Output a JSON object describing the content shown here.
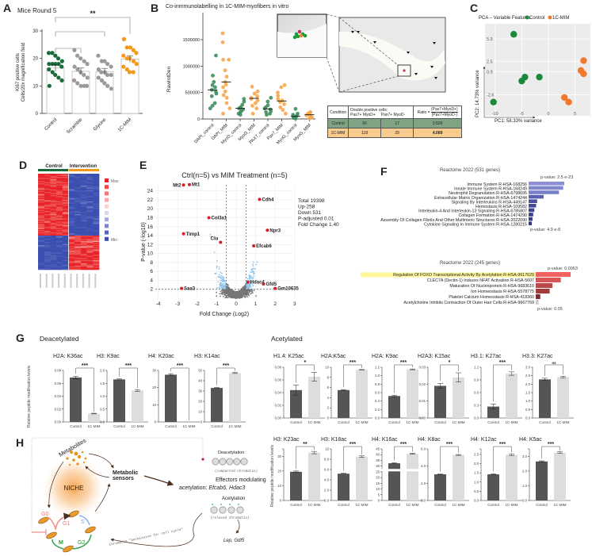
{
  "panels": {
    "A": "A",
    "B": "B",
    "C": "C",
    "D": "D",
    "E": "E",
    "F": "F",
    "G": "G",
    "H": "H"
  },
  "colors": {
    "control_green": "#1a6b3a",
    "mim_orange": "#f39a1e",
    "gray": "#9a9a9a",
    "heat_red": "#e8232a",
    "heat_blue": "#3a4fb0",
    "bar_dark": "#555555",
    "bar_light": "#dddddd",
    "highlight": "#fff59a"
  },
  "chart_data": [
    {
      "id": "A",
      "type": "bar",
      "title": "Mice Round 5",
      "ylabel": "Ki67 positive cells\nCells/20x magnification field",
      "ylabel_lines": [
        "Ki67 positive cells",
        "Cells/20x magnification field"
      ],
      "ylim": [
        0,
        30
      ],
      "yticks": [
        0,
        10,
        20,
        30
      ],
      "categories": [
        "Control",
        "Scramble",
        "Glycine",
        "1C-MIM"
      ],
      "points": [
        [
          22,
          22,
          21,
          20,
          19,
          18,
          18,
          18,
          18,
          17,
          16,
          15,
          14,
          13,
          12,
          10
        ],
        [
          23,
          21,
          20,
          19,
          18,
          17,
          16,
          15,
          14,
          13,
          12,
          11,
          10,
          10,
          10
        ],
        [
          21,
          19,
          19,
          18,
          17,
          16,
          15,
          15,
          14,
          14,
          13,
          12,
          11,
          10,
          9
        ],
        [
          27,
          24,
          24,
          23,
          22,
          21,
          20,
          20,
          19,
          18,
          17,
          16,
          15,
          15
        ]
      ],
      "values": [
        16.5,
        15.3,
        15.2,
        19.8
      ],
      "significance": [
        {
          "between": [
            "Control",
            "1C-MIM"
          ],
          "label": "**"
        },
        {
          "between": [
            "Control",
            "Glycine"
          ],
          "label": ""
        },
        {
          "between": [
            "Control",
            "Scramble"
          ],
          "label": ""
        }
      ]
    },
    {
      "id": "B",
      "type": "scatter",
      "title": "Co-inmmunolabelling in 1C-MIM-myofibers in vitro",
      "ylabel": "RawIntDen",
      "ylim": [
        0,
        1800000
      ],
      "yticks": [
        0,
        500000,
        1000000,
        1500000
      ],
      "categories": [
        "DAPI_control",
        "DAPI_MIM",
        "MyoD_control",
        "MyoD_MIM",
        "PAX7_control",
        "Pax7_MIM",
        "MyoG_control",
        "MyoG_MIM"
      ],
      "values": [
        550000,
        700000,
        200000,
        390000,
        190000,
        340000,
        50000,
        80000
      ],
      "points": [
        [
          1200000,
          820000,
          700000,
          640000,
          600000,
          550000,
          520000,
          480000,
          430000,
          300000,
          250000,
          200000
        ],
        [
          1620000,
          1450000,
          1120000,
          1120000,
          920000,
          800000,
          700000,
          650000,
          600000,
          520000,
          450000,
          400000,
          300000,
          200000,
          100000
        ],
        [
          380000,
          330000,
          270000,
          220000,
          200000,
          180000,
          150000,
          120000,
          100000,
          80000
        ],
        [
          610000,
          520000,
          480000,
          430000,
          400000,
          380000,
          350000,
          300000,
          250000,
          200000,
          100000
        ],
        [
          400000,
          330000,
          260000,
          220000,
          200000,
          180000,
          150000,
          130000,
          100000,
          80000
        ],
        [
          640000,
          600000,
          500000,
          440000,
          380000,
          350000,
          320000,
          280000,
          220000,
          170000,
          100000
        ],
        [
          190000,
          100000,
          80000,
          60000,
          40000,
          30000,
          20000,
          10000
        ],
        [
          130000,
          110000,
          100000,
          90000,
          80000,
          70000,
          50000,
          30000,
          10000
        ]
      ]
    },
    {
      "id": "C",
      "type": "scatter",
      "title": "PCA – Variable Features",
      "xlabel": "PC1: 58.33% variance",
      "ylabel": "PC2: 14.73% variance",
      "xticks": [
        -10,
        -5,
        0,
        5
      ],
      "yticks": [
        -2.6,
        0.9,
        2.5,
        5.9
      ],
      "series": [
        {
          "name": "Control",
          "color": "#1a8a3a",
          "points": [
            [
              -6.5,
              6.6
            ],
            [
              -4.4,
              0.1
            ],
            [
              -5.0,
              -0.5
            ],
            [
              -1.7,
              0.1
            ],
            [
              -10.3,
              -3.7
            ]
          ]
        },
        {
          "name": "1C-MIM",
          "color": "#f07a2a",
          "points": [
            [
              6.6,
              2.6
            ],
            [
              6.1,
              1.1
            ],
            [
              6.6,
              0.6
            ],
            [
              3.0,
              -3.0
            ],
            [
              3.8,
              -3.7
            ]
          ]
        }
      ]
    },
    {
      "id": "D",
      "type": "heatmap",
      "groups": [
        "Control",
        "Intervention"
      ],
      "legend": {
        "max": "Max",
        "min": "Min"
      }
    },
    {
      "id": "E",
      "type": "scatter",
      "title": "Ctrl(n=5) vs MIM Treatment (n=5)",
      "xlabel": "Fold Change (Log2)",
      "ylabel": "P-value (-log10)",
      "xlim": [
        -4,
        3
      ],
      "ylim": [
        0,
        26
      ],
      "xticks": [
        -4,
        -3,
        -2,
        -1,
        0,
        1,
        2,
        3
      ],
      "yticks": [
        2,
        4,
        6,
        8,
        10,
        12,
        14,
        16,
        18,
        20,
        22,
        24
      ],
      "stats": [
        "Total 19398",
        "Up-258",
        "Down 531",
        "P-adjusted 0.01",
        "Fold Change 1.40"
      ],
      "thresholds": {
        "fold_change_log2": 0.5,
        "p_log10": 2
      },
      "labeled_genes": [
        {
          "gene": "Mt2",
          "x": -2.7,
          "y": 25.3
        },
        {
          "gene": "Mt1",
          "x": -2.4,
          "y": 25.4
        },
        {
          "gene": "Cdh4",
          "x": 1.2,
          "y": 22.1
        },
        {
          "gene": "Col3a1",
          "x": -1.4,
          "y": 18.0
        },
        {
          "gene": "Npr3",
          "x": 1.6,
          "y": 15.2
        },
        {
          "gene": "Timp1",
          "x": -2.7,
          "y": 14.4
        },
        {
          "gene": "Clu",
          "x": -0.8,
          "y": 12.5
        },
        {
          "gene": "Efcab6",
          "x": 0.9,
          "y": 11.7
        },
        {
          "gene": "Hdac4",
          "x": 0.6,
          "y": 3.6
        },
        {
          "gene": "Gfd5",
          "x": 1.4,
          "y": 3.2
        },
        {
          "gene": "Saa3",
          "x": -2.8,
          "y": 2.2
        },
        {
          "gene": "Gm10635",
          "x": 2.0,
          "y": 2.2
        }
      ]
    },
    {
      "id": "F-top",
      "type": "bar",
      "orientation": "horizontal",
      "title": "Reactome 2022 (531 genes)",
      "p_top": "p-value: 2.5 e-23",
      "p_bottom": "p-value: 4.9 e-8",
      "categories": [
        "Immune System R-HSA-168256",
        "Innate Immune System R-HSA-168249",
        "Neutrophil Degranulation R-HSA-6798695",
        "Extracellular Matrix Organization R-HSA-1474244",
        "Signaling By Interleukins R-HSA-449147",
        "Hemostasis R-HSA-109582",
        "Interleukin-4 And Interleukin-13 Signaling R-HSA-6785807",
        "Collagen Formation R-HSA-1474290",
        "Assembly Of Collagen Fibrils And Other Multimeric Structures R-HSA-2022090",
        "Cytokine Signaling In Immune System R-HSA-1280215"
      ],
      "values": [
        1.0,
        0.97,
        0.85,
        0.42,
        0.24,
        0.21,
        0.16,
        0.13,
        0.11,
        0.09
      ],
      "colors": [
        "#8a8fd6",
        "#8088d0",
        "#7880c8",
        "#5a60b0",
        "#4a4fa0",
        "#454a98",
        "#404592",
        "#3c408c",
        "#393d88",
        "#363a84"
      ]
    },
    {
      "id": "F-bottom",
      "type": "bar",
      "orientation": "horizontal",
      "title": "Reactome 2022 (245 genes)",
      "p_top": "p-value: 0.0063",
      "p_bottom": "p-value: 0.05",
      "highlighted": "Regulation Of FOXO Transcriptional Activity By Acetylation R-HSA-9617629",
      "categories": [
        "Regulation Of FOXO Transcriptional Activity By Acetylation R-HSA-9617629",
        "CLEC7A (Dectin-1) Induces NFAT Activation R-HSA-5607",
        "Maturation Of Nucleoprotein R-HSA-9683610",
        "Ion Homeostasis R-HSA-5578775",
        "Platelet Calcium Homeostasis R-HSA-418360",
        "Acetylcholine Inhibits Contraction Of Outer Hair Cells R-HSA-9667769"
      ],
      "values": [
        1.0,
        0.72,
        0.48,
        0.4,
        0.13,
        0.08
      ],
      "colors": [
        "#f06060",
        "#d85555",
        "#b84848",
        "#a03c3c",
        "#7a2e2e",
        "#cccccc"
      ]
    },
    {
      "id": "G",
      "type": "bar",
      "ylabel": "Relative peptide modification levels",
      "groups": {
        "deacetylated": "Deacetylated",
        "acetylated": "Acetylated"
      },
      "categories": [
        "Control",
        "1C-MIM"
      ],
      "deacetylated": [
        {
          "title": "H2A: K36ac",
          "ticks": [
            0,
            0.02,
            0.04,
            0.06,
            0.08
          ],
          "tick_labels": [
            "0.00",
            "0.02",
            "0.04",
            "0.06",
            "0.08"
          ],
          "values": [
            0.069,
            0.013
          ],
          "errors": [
            0.002,
            0.0005
          ],
          "sig": "***"
        },
        {
          "title": "H3: K9ac",
          "ticks": [
            0,
            0.5,
            1.0,
            1.5,
            2.0
          ],
          "tick_labels": [
            "0.0",
            "0.5",
            "1.0",
            "1.5",
            "2.0"
          ],
          "values": [
            1.65,
            1.22
          ],
          "errors": [
            0.02,
            0.03
          ],
          "sig": "***"
        },
        {
          "title": "H4: K20ac",
          "ticks": [
            0,
            10,
            20,
            30
          ],
          "tick_labels": [
            "0",
            "10",
            "20",
            "30"
          ],
          "values": [
            27.5,
            0
          ],
          "errors": [
            0.6,
            0
          ],
          "sig": "***"
        },
        {
          "title": "H3: K14ac",
          "ticks": [
            0,
            10,
            20,
            30,
            40,
            50
          ],
          "tick_labels": [
            "0",
            "10",
            "20",
            "30",
            "40",
            "50"
          ],
          "values": [
            33,
            47.5
          ],
          "errors": [
            0.4,
            0.5
          ],
          "sig": "***"
        }
      ],
      "acetylated": [
        {
          "title": "H1.4: K25ac",
          "ticks": [
            0,
            0.02,
            0.04,
            0.06,
            0.08
          ],
          "tick_labels": [
            "0.00",
            "0.02",
            "0.04",
            "0.06",
            "0.08"
          ],
          "values": [
            0.044,
            0.065
          ],
          "errors": [
            0.008,
            0.007
          ],
          "sig": "*"
        },
        {
          "title": "H2A:K5ac",
          "ticks": [
            0,
            2,
            4,
            6,
            8,
            10
          ],
          "tick_labels": [
            "0",
            "2",
            "4",
            "6",
            "8",
            "10"
          ],
          "values": [
            5.5,
            9.5
          ],
          "errors": [
            0.1,
            0.05
          ],
          "sig": "***"
        },
        {
          "title": "H2A: K9ac",
          "ticks": [
            0,
            0.2,
            0.4,
            0.6,
            0.8,
            1.0,
            1.2
          ],
          "tick_labels": [
            "0.0",
            "0.2",
            "0.4",
            "0.6",
            "0.8",
            "1.0",
            "1.2"
          ],
          "values": [
            0.52,
            1.15
          ],
          "errors": [
            0.02,
            0.01
          ],
          "sig": "***"
        },
        {
          "title": "H2A3: K15ac",
          "ticks": [
            0,
            0.01,
            0.02,
            0.03
          ],
          "tick_labels": [
            "0.00",
            "0.01",
            "0.02",
            "0.03"
          ],
          "values": [
            0.019,
            0.024
          ],
          "errors": [
            0.0015,
            0.0027
          ],
          "sig": "*"
        },
        {
          "title": "H3.1: K27ac",
          "ticks": [
            0,
            0.3,
            0.6,
            0.9,
            1.2
          ],
          "tick_labels": [
            "0.0",
            "0.3",
            "0.6",
            "0.9",
            "1.2"
          ],
          "values": [
            0.27,
            1.05
          ],
          "errors": [
            0.06,
            0.04
          ],
          "sig": "***"
        },
        {
          "title": "H3.3: K27ac",
          "ticks": [
            0,
            0.5,
            1.0,
            1.5,
            2.0,
            2.5,
            3.0
          ],
          "tick_labels": [
            "0.0",
            "0.5",
            "1.0",
            "1.5",
            "2.0",
            "2.5",
            "3.0"
          ],
          "values": [
            2.28,
            2.42
          ],
          "errors": [
            0.07,
            0.05
          ],
          "sig": "ns"
        },
        {
          "title": "H3: K23ac",
          "ticks": [
            0,
            10,
            20,
            30,
            35
          ],
          "tick_labels": [
            "0",
            "10",
            "20",
            "30",
            ""
          ],
          "values": [
            19.5,
            32.5
          ],
          "errors": [
            0.5,
            0.8
          ],
          "sig": "**"
        },
        {
          "title": "H3: K18ac",
          "ticks": [
            0,
            2,
            4,
            6,
            8,
            10
          ],
          "tick_labels": [
            "0.0",
            "2.0",
            "4.0",
            "6.0",
            "8.0",
            "10"
          ],
          "values": [
            5.2,
            8.5
          ],
          "errors": [
            0.08,
            0.15
          ],
          "sig": "***"
        },
        {
          "title": "H4: K16ac",
          "ticks": [
            0,
            5,
            10,
            15,
            20,
            25,
            30,
            35,
            40,
            45
          ],
          "tick_labels": [
            "0",
            "5",
            "10",
            "15",
            "20",
            "25",
            "30",
            "35",
            "40",
            "45"
          ],
          "values": [
            32.5,
            40.8
          ],
          "errors": [
            0.5,
            0.4
          ],
          "sig": "***"
        },
        {
          "title": "H4: K8ac",
          "ticks": [
            0,
            2,
            4,
            6
          ],
          "tick_labels": [
            "0.0",
            "2.0",
            "4.0",
            "6.0"
          ],
          "values": [
            3.05,
            5.3
          ],
          "errors": [
            0.03,
            0.05
          ],
          "sig": "***"
        },
        {
          "title": "H4: K12ac",
          "ticks": [
            0,
            0.5,
            1.0,
            1.5,
            2.0,
            2.5,
            2.8
          ],
          "tick_labels": [
            "0.0",
            "0.5",
            "1.0",
            "1.5",
            "2.0",
            "2.5",
            ""
          ],
          "values": [
            1.42,
            2.48
          ],
          "errors": [
            0.03,
            0.04
          ],
          "sig": "***"
        },
        {
          "title": "H4: K5ac",
          "ticks": [
            0,
            1,
            2,
            3,
            3.5
          ],
          "tick_labels": [
            "0.0",
            "1.0",
            "2.0",
            "3.0",
            ""
          ],
          "values": [
            2.65,
            3.25
          ],
          "errors": [
            0.04,
            0.05
          ],
          "sig": "***"
        }
      ]
    }
  ],
  "table": {
    "header": [
      "Condition",
      "Double positive cells:",
      "Pax7+ MyoD+",
      "Pax7+ MyoD-",
      "Ratio =",
      "(Pax7+MyoD+)",
      "(Pax7+MyoD-)"
    ],
    "rows": [
      [
        "Control",
        "60",
        "17",
        "3.529"
      ],
      [
        "1C-MIM",
        "118",
        "29",
        "4.069"
      ]
    ]
  },
  "diagram": {
    "metabolites": "Metabolites",
    "sensors_1": "Metabolic",
    "sensors_2": "sensors",
    "niche": "NICHE",
    "g0": "G0",
    "g1": "G1",
    "s": "S",
    "g2": "G2",
    "m": "M",
    "deacetylation": "Deacetylation",
    "compacted": "(compacted chromatin)",
    "effectors_1": "Effectors modulating",
    "effectors_2": "acetylation: ",
    "effectors_genes": "Efcab6, Hdac3",
    "acetylation": "Acetylation",
    "relaxed": "(relaxed chromatin)",
    "targets": "Lep, Gdf5",
    "permissive": "Chromatin \"permissive for cell cycle\""
  }
}
